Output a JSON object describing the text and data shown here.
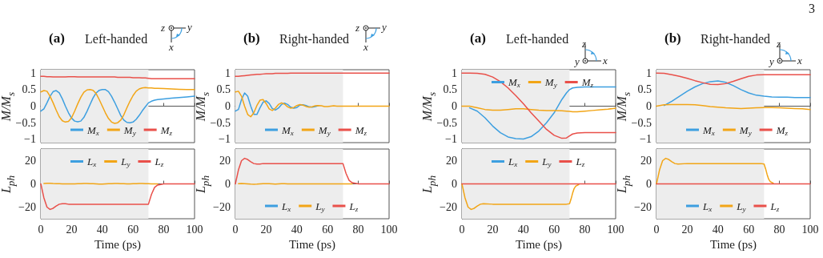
{
  "chart_data": [
    {
      "type": "line",
      "title": "(a)",
      "subtitle": "Left-handed",
      "ylabel": "M/M$_{s}$",
      "legend": "bottom",
      "tick_labels": "y",
      "xlim": [
        0,
        100
      ],
      "xticks": [
        0,
        20,
        40,
        60,
        80,
        100
      ],
      "ylim": [
        -1.1,
        1.1
      ],
      "yticks": [
        {
          "value": -1,
          "label": "−1"
        },
        {
          "value": -0.5,
          "label": "−0.5"
        },
        0,
        0.5,
        1
      ],
      "bands": [
        {
          "axis": "x",
          "from": 0,
          "to": 70,
          "color": "#ededed"
        }
      ],
      "annotations": [
        "z",
        "y",
        "x"
      ],
      "x": [
        0,
        2,
        4,
        6,
        8,
        10,
        12,
        14,
        16,
        18,
        20,
        22,
        24,
        26,
        28,
        30,
        32,
        34,
        36,
        38,
        40,
        42,
        44,
        46,
        48,
        50,
        52,
        54,
        56,
        58,
        60,
        62,
        64,
        66,
        68,
        70,
        72,
        74,
        76,
        80,
        85,
        90,
        95,
        100
      ],
      "series": [
        {
          "name": "M$_{x}$",
          "color": "#3d9fe0",
          "values": [
            -0.15,
            -0.08,
            0.1,
            0.3,
            0.44,
            0.47,
            0.4,
            0.22,
            0,
            -0.2,
            -0.36,
            -0.45,
            -0.47,
            -0.45,
            -0.34,
            -0.16,
            0.05,
            0.25,
            0.4,
            0.48,
            0.5,
            0.5,
            0.44,
            0.3,
            0.12,
            -0.08,
            -0.28,
            -0.42,
            -0.49,
            -0.5,
            -0.48,
            -0.4,
            -0.28,
            -0.14,
            -0.02,
            0.1,
            0.15,
            0.18,
            0.2,
            0.22,
            0.24,
            0.26,
            0.28,
            0.3
          ]
        },
        {
          "name": "M$_{y}$",
          "color": "#f2a516",
          "values": [
            0.43,
            0.47,
            0.45,
            0.3,
            0.1,
            -0.12,
            -0.32,
            -0.44,
            -0.48,
            -0.46,
            -0.35,
            -0.15,
            0.07,
            0.27,
            0.42,
            0.49,
            0.5,
            0.48,
            0.38,
            0.2,
            0,
            -0.2,
            -0.37,
            -0.48,
            -0.52,
            -0.5,
            -0.42,
            -0.26,
            -0.05,
            0.15,
            0.32,
            0.45,
            0.52,
            0.55,
            0.56,
            0.55,
            0.55,
            0.54,
            0.54,
            0.53,
            0.52,
            0.51,
            0.5,
            0.5
          ]
        },
        {
          "name": "M$_{z}$",
          "color": "#e9504a",
          "values": [
            0.9,
            0.9,
            0.89,
            0.89,
            0.88,
            0.88,
            0.88,
            0.88,
            0.88,
            0.89,
            0.89,
            0.89,
            0.88,
            0.88,
            0.88,
            0.88,
            0.88,
            0.88,
            0.88,
            0.88,
            0.88,
            0.88,
            0.88,
            0.88,
            0.88,
            0.87,
            0.87,
            0.87,
            0.87,
            0.87,
            0.86,
            0.86,
            0.86,
            0.85,
            0.85,
            0.84,
            0.83,
            0.83,
            0.83,
            0.83,
            0.83,
            0.83,
            0.83,
            0.83
          ]
        }
      ]
    },
    {
      "type": "line",
      "title": "(b)",
      "subtitle": "Right-handed",
      "ylabel": "M/M$_{s}$",
      "legend": "bottom",
      "tick_labels": "y",
      "xlim": [
        0,
        100
      ],
      "xticks": [
        0,
        20,
        40,
        60,
        80,
        100
      ],
      "ylim": [
        -1.1,
        1.1
      ],
      "yticks": [
        {
          "value": -1,
          "label": "−1"
        },
        {
          "value": -0.5,
          "label": "−0.5"
        },
        0,
        0.5,
        1
      ],
      "bands": [
        {
          "axis": "x",
          "from": 0,
          "to": 70,
          "color": "#ededed"
        }
      ],
      "annotations": [
        "z",
        "y",
        "x"
      ],
      "x": [
        0,
        2,
        4,
        6,
        8,
        10,
        12,
        14,
        16,
        18,
        20,
        22,
        24,
        26,
        28,
        30,
        32,
        34,
        36,
        38,
        40,
        42,
        44,
        46,
        48,
        50,
        52,
        54,
        56,
        58,
        60,
        62,
        64,
        66,
        68,
        70,
        72,
        74,
        76,
        80,
        85,
        90,
        95,
        100
      ],
      "series": [
        {
          "name": "M$_{x}$",
          "color": "#3d9fe0",
          "values": [
            -0.15,
            -0.1,
            0.2,
            0.4,
            0.3,
            0,
            -0.25,
            -0.25,
            -0.05,
            0.12,
            0.16,
            0.08,
            -0.07,
            -0.12,
            -0.06,
            0.05,
            0.09,
            0.05,
            -0.03,
            -0.06,
            -0.04,
            0.03,
            0.04,
            0.02,
            -0.02,
            -0.03,
            -0.01,
            0.02,
            null,
            null,
            null,
            null,
            null,
            null,
            null,
            null,
            null,
            null,
            null,
            null,
            null,
            null,
            null,
            null
          ]
        },
        {
          "name": "M$_{y}$",
          "color": "#f2a516",
          "values": [
            0.43,
            0.45,
            0.3,
            0,
            -0.25,
            -0.32,
            -0.2,
            0.02,
            0.18,
            0.2,
            0.08,
            -0.08,
            -0.13,
            -0.06,
            0.05,
            0.1,
            0.06,
            -0.02,
            -0.06,
            -0.04,
            0.02,
            0.05,
            0.03,
            -0.01,
            -0.03,
            -0.02,
            0.01,
            0.02,
            0.01,
            -0.01,
            -0.01,
            0,
            0.01,
            0,
            0,
            0,
            0,
            0,
            0,
            0,
            0,
            0,
            0,
            0
          ]
        },
        {
          "name": "M$_{z}$",
          "color": "#e9504a",
          "values": [
            0.9,
            0.9,
            0.91,
            0.92,
            0.93,
            0.94,
            0.95,
            0.96,
            0.96,
            0.97,
            0.98,
            0.98,
            0.98,
            0.99,
            0.99,
            0.99,
            0.99,
            0.99,
            1,
            1,
            1,
            1,
            1,
            1,
            1,
            1,
            1,
            1,
            1,
            1,
            1,
            1,
            1,
            1,
            1,
            1,
            1,
            1,
            1,
            1,
            1,
            1,
            1,
            1
          ]
        }
      ]
    },
    {
      "type": "line",
      "title": "(a)",
      "subtitle": "Left-handed",
      "ylabel": "M/M$_{s}$",
      "legend": "top",
      "tick_labels": "y",
      "xlim": [
        0,
        100
      ],
      "xticks": [
        0,
        20,
        40,
        60,
        80,
        100
      ],
      "ylim": [
        -1.1,
        1.1
      ],
      "yticks": [
        {
          "value": -1,
          "label": "−1"
        },
        {
          "value": -0.5,
          "label": "−0.5"
        },
        0,
        0.5,
        1
      ],
      "bands": [
        {
          "axis": "x",
          "from": 0,
          "to": 70,
          "color": "#ededed"
        }
      ],
      "annotations": [
        "z",
        "y",
        "x"
      ],
      "x": [
        0,
        5,
        10,
        15,
        20,
        25,
        30,
        35,
        40,
        45,
        50,
        55,
        60,
        65,
        68,
        70,
        72,
        75,
        80,
        85,
        90,
        95,
        100
      ],
      "series": [
        {
          "name": "M$_{x}$",
          "color": "#3d9fe0",
          "values": [
            null,
            -0.05,
            -0.15,
            -0.35,
            -0.6,
            -0.8,
            -0.93,
            -0.98,
            -0.99,
            -0.92,
            -0.75,
            -0.5,
            -0.2,
            0.2,
            0.4,
            0.5,
            0.55,
            0.57,
            0.58,
            0.58,
            0.58,
            0.58,
            0.58
          ]
        },
        {
          "name": "M$_{y}$",
          "color": "#f2a516",
          "values": [
            0,
            0,
            -0.05,
            -0.1,
            -0.12,
            -0.12,
            -0.1,
            -0.08,
            -0.08,
            -0.1,
            -0.12,
            -0.13,
            -0.13,
            -0.14,
            -0.15,
            -0.16,
            -0.17,
            -0.17,
            -0.15,
            -0.13,
            -0.11,
            -0.09,
            -0.06
          ]
        },
        {
          "name": "M$_{z}$",
          "color": "#e9504a",
          "values": [
            1,
            1,
            0.99,
            0.96,
            0.88,
            0.74,
            0.55,
            0.32,
            0.07,
            -0.2,
            -0.45,
            -0.7,
            -0.88,
            -0.97,
            -0.96,
            -0.9,
            -0.84,
            -0.81,
            -0.8,
            -0.8,
            -0.8,
            -0.8,
            -0.8
          ]
        }
      ]
    },
    {
      "type": "line",
      "title": "(b)",
      "subtitle": "Right-handed",
      "ylabel": "M/M$_{s}$",
      "legend": "bottom",
      "tick_labels": "y",
      "xlim": [
        0,
        100
      ],
      "xticks": [
        0,
        20,
        40,
        60,
        80,
        100
      ],
      "ylim": [
        -1.1,
        1.1
      ],
      "yticks": [
        {
          "value": -1,
          "label": "−1"
        },
        {
          "value": -0.5,
          "label": "−0.5"
        },
        0,
        0.5,
        1
      ],
      "bands": [
        {
          "axis": "x",
          "from": 0,
          "to": 70,
          "color": "#ededed"
        }
      ],
      "annotations": [
        "z",
        "y",
        "x",
        "3"
      ],
      "x": [
        0,
        5,
        10,
        15,
        20,
        25,
        30,
        35,
        40,
        45,
        50,
        55,
        60,
        65,
        70,
        75,
        80,
        85,
        90,
        95,
        100
      ],
      "series": [
        {
          "name": "M$_{x}$",
          "color": "#3d9fe0",
          "values": [
            null,
            0.02,
            0.15,
            0.3,
            0.45,
            0.58,
            0.68,
            0.74,
            0.76,
            0.72,
            0.62,
            0.5,
            0.4,
            0.33,
            0.3,
            0.28,
            0.27,
            0.27,
            0.26,
            0.26,
            0.26
          ]
        },
        {
          "name": "M$_{y}$",
          "color": "#f2a516",
          "values": [
            0,
            0.04,
            0.05,
            0.05,
            0.05,
            0.04,
            0.02,
            -0.01,
            -0.03,
            -0.05,
            -0.06,
            -0.07,
            -0.06,
            -0.05,
            -0.04,
            -0.04,
            -0.05,
            -0.06,
            -0.07,
            -0.08,
            -0.1
          ]
        },
        {
          "name": "M$_{z}$",
          "color": "#e9504a",
          "values": [
            1,
            0.99,
            0.95,
            0.9,
            0.84,
            0.77,
            0.71,
            0.66,
            0.65,
            0.68,
            0.75,
            0.83,
            0.9,
            0.94,
            0.95,
            0.95,
            0.95,
            0.95,
            0.95,
            0.95,
            0.95
          ]
        }
      ]
    },
    {
      "type": "line",
      "xlabel": "Time (ps)",
      "ylabel": "L$_{ph}$",
      "legend": "top",
      "xlim": [
        0,
        100
      ],
      "xticks": [
        0,
        20,
        40,
        60,
        80,
        100
      ],
      "ylim": [
        -30,
        30
      ],
      "yticks": [
        {
          "value": -20,
          "label": "−20"
        },
        0,
        20
      ],
      "bands": [
        {
          "axis": "x",
          "from": 0,
          "to": 70,
          "color": "#ededed"
        }
      ],
      "x": [
        0,
        2,
        4,
        6,
        8,
        10,
        12,
        14,
        16,
        18,
        20,
        22,
        24,
        26,
        28,
        30,
        32,
        34,
        36,
        38,
        40,
        42,
        44,
        46,
        48,
        50,
        52,
        54,
        56,
        58,
        60,
        62,
        64,
        66,
        68,
        70,
        72,
        74,
        76,
        80,
        85,
        90,
        95,
        100
      ],
      "series": [
        {
          "name": "L$_{x}$",
          "color": "#3d9fe0",
          "values": [
            null,
            null,
            null,
            null,
            null,
            null,
            null,
            null,
            null,
            null,
            null,
            null,
            null,
            null,
            null,
            null,
            null,
            null,
            null,
            null,
            null,
            null,
            null,
            null,
            null,
            null,
            null,
            null,
            null,
            null,
            null,
            null,
            null,
            null,
            null,
            null,
            null,
            null,
            null,
            null,
            null,
            null,
            null,
            null
          ]
        },
        {
          "name": "L$_{y}$",
          "color": "#f2a516",
          "values": [
            null,
            0.3,
            0.5,
            0.5,
            0.3,
            0.2,
            0.1,
            0,
            0,
            0,
            0,
            0,
            0.1,
            0.2,
            0.3,
            0.3,
            0.2,
            0.1,
            0,
            -0.1,
            -0.1,
            0,
            0.1,
            0.2,
            0.3,
            0.3,
            0.2,
            0.1,
            0,
            0,
            0.1,
            0.2,
            0.3,
            0.3,
            0.2,
            0.1,
            0,
            0,
            0,
            null,
            null,
            null,
            null,
            null
          ]
        },
        {
          "name": "L$_{z}$",
          "color": "#e9504a",
          "values": [
            0,
            -12,
            -20,
            -22,
            -21,
            -19,
            -17.5,
            -17,
            -17,
            -17.5,
            -17.5,
            -17.5,
            -17.5,
            -17.5,
            -17.5,
            -17.5,
            -17.5,
            -17.5,
            -17.5,
            -17.5,
            -17.5,
            -17.5,
            -17.5,
            -17.5,
            -17.5,
            -17.5,
            -17.5,
            -17.5,
            -17.5,
            -17.5,
            -17.5,
            -17.5,
            -17.5,
            -17.5,
            -17.5,
            -17.5,
            -9,
            -3,
            -1,
            0,
            0,
            0,
            0,
            0
          ]
        }
      ]
    },
    {
      "type": "line",
      "xlabel": "Time (ps)",
      "ylabel": "L$_{ph}$",
      "legend": "bottom",
      "xlim": [
        0,
        100
      ],
      "xticks": [
        0,
        20,
        40,
        60,
        80,
        100
      ],
      "ylim": [
        -30,
        30
      ],
      "yticks": [
        {
          "value": -20,
          "label": "−20"
        },
        0,
        20
      ],
      "bands": [
        {
          "axis": "x",
          "from": 0,
          "to": 70,
          "color": "#ededed"
        }
      ],
      "x": [
        0,
        2,
        4,
        6,
        8,
        10,
        12,
        14,
        16,
        18,
        20,
        22,
        24,
        26,
        28,
        30,
        32,
        34,
        36,
        38,
        40,
        42,
        44,
        46,
        48,
        50,
        52,
        54,
        56,
        58,
        60,
        62,
        64,
        66,
        68,
        70,
        72,
        74,
        76,
        80,
        85,
        90,
        95,
        100
      ],
      "series": [
        {
          "name": "L$_{x}$",
          "color": "#3d9fe0",
          "values": [
            null,
            null,
            null,
            null,
            null,
            null,
            null,
            null,
            null,
            null,
            null,
            null,
            null,
            null,
            null,
            null,
            null,
            null,
            null,
            null,
            null,
            null,
            null,
            null,
            null,
            null,
            null,
            null,
            null,
            null,
            null,
            null,
            null,
            null,
            null,
            null,
            null,
            null,
            null,
            null,
            null,
            null,
            null,
            null
          ]
        },
        {
          "name": "L$_{y}$",
          "color": "#f2a516",
          "values": [
            null,
            0.2,
            0.3,
            0.2,
            0,
            -0.2,
            -0.3,
            -0.2,
            0,
            0.2,
            0.2,
            0.1,
            0,
            -0.1,
            0,
            0.1,
            0.1,
            0,
            0,
            0,
            0,
            0,
            0,
            0,
            0,
            0,
            0,
            0,
            0,
            0,
            0,
            0,
            0,
            0,
            0,
            0,
            0,
            0,
            0,
            null,
            null,
            null,
            null,
            null
          ]
        },
        {
          "name": "L$_{z}$",
          "color": "#e9504a",
          "values": [
            0,
            12,
            20,
            22,
            21,
            19,
            17.5,
            17,
            17,
            17.5,
            17.5,
            17.5,
            17.5,
            17.5,
            17.5,
            17.5,
            17.5,
            17.5,
            17.5,
            17.5,
            17.5,
            17.5,
            17.5,
            17.5,
            17.5,
            17.5,
            17.5,
            17.5,
            17.5,
            17.5,
            17.5,
            17.5,
            17.5,
            17.5,
            17.5,
            17.5,
            9,
            3,
            1,
            0,
            0,
            0,
            0,
            0
          ]
        }
      ]
    },
    {
      "type": "line",
      "xlabel": "Time (ps)",
      "ylabel": "L$_{ph}$",
      "legend": "top",
      "xlim": [
        0,
        100
      ],
      "xticks": [
        0,
        20,
        40,
        60,
        80,
        100
      ],
      "ylim": [
        -30,
        30
      ],
      "yticks": [
        {
          "value": -20,
          "label": "−20"
        },
        0,
        20
      ],
      "bands": [
        {
          "axis": "x",
          "from": 0,
          "to": 70,
          "color": "#ededed"
        }
      ],
      "x": [
        0,
        2,
        4,
        6,
        8,
        10,
        12,
        14,
        20,
        30,
        40,
        50,
        60,
        68,
        70,
        71,
        72,
        73,
        74,
        76,
        80,
        90,
        100
      ],
      "series": [
        {
          "name": "L$_{x}$",
          "color": "#3d9fe0",
          "values": [
            null,
            null,
            null,
            null,
            null,
            null,
            null,
            null,
            null,
            null,
            null,
            null,
            null,
            null,
            null,
            null,
            null,
            null,
            null,
            null,
            null,
            null,
            null
          ]
        },
        {
          "name": "L$_{y}$",
          "color": "#f2a516",
          "values": [
            0,
            -12,
            -20,
            -22,
            -21,
            -19,
            -17.5,
            -17,
            -17.5,
            -17.5,
            -17.5,
            -17.5,
            -17.5,
            -17.5,
            -17,
            -13,
            -8,
            -4,
            -2,
            -0.5,
            null,
            null,
            null
          ]
        },
        {
          "name": "L$_{z}$",
          "color": "#e9504a",
          "values": [
            0,
            0,
            0,
            0,
            0,
            0,
            0,
            0,
            0,
            0,
            0,
            0,
            0,
            0,
            0,
            0,
            0,
            0,
            0,
            0,
            0,
            0,
            0
          ]
        }
      ]
    },
    {
      "type": "line",
      "xlabel": "Time (ps)",
      "ylabel": "L$_{ph}$",
      "legend": "bottom",
      "xlim": [
        0,
        100
      ],
      "xticks": [
        0,
        20,
        40,
        60,
        80,
        100
      ],
      "ylim": [
        -30,
        30
      ],
      "yticks": [
        {
          "value": -20,
          "label": "−20"
        },
        0,
        20
      ],
      "bands": [
        {
          "axis": "x",
          "from": 0,
          "to": 70,
          "color": "#ededed"
        }
      ],
      "x": [
        0,
        2,
        4,
        6,
        8,
        10,
        12,
        14,
        20,
        30,
        40,
        50,
        60,
        68,
        70,
        71,
        72,
        73,
        74,
        76,
        80,
        90,
        100
      ],
      "series": [
        {
          "name": "L$_{x}$",
          "color": "#3d9fe0",
          "values": [
            null,
            null,
            null,
            null,
            null,
            null,
            null,
            null,
            null,
            null,
            null,
            null,
            null,
            null,
            null,
            null,
            null,
            null,
            null,
            null,
            null,
            null,
            null
          ]
        },
        {
          "name": "L$_{y}$",
          "color": "#f2a516",
          "values": [
            0,
            12,
            20,
            22,
            21,
            19,
            17.5,
            17,
            17.5,
            17.5,
            17.5,
            17.5,
            17.5,
            17.5,
            17,
            13,
            8,
            4,
            2,
            0.5,
            null,
            null,
            null
          ]
        },
        {
          "name": "L$_{z}$",
          "color": "#e9504a",
          "values": [
            0,
            0,
            0,
            0,
            0,
            0,
            0,
            0,
            0,
            0,
            0,
            0,
            0,
            0,
            0,
            0,
            0,
            0,
            0,
            0,
            0,
            0,
            0
          ]
        }
      ]
    }
  ]
}
